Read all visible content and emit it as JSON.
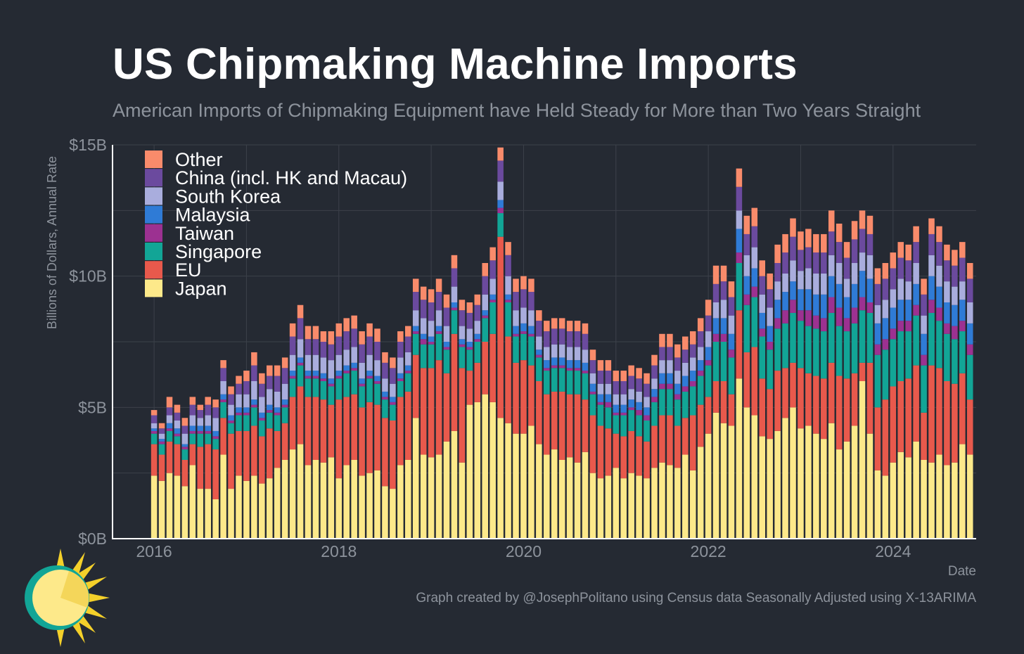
{
  "title": "US Chipmaking Machine Imports",
  "subtitle": "American Imports of Chipmaking Equipment have Held Steady for More than Two Years Straight",
  "caption": "Graph created by @JosephPolitano using Census data Seasonally Adjusted using X-13ARIMA",
  "colors": {
    "background": "#252a33",
    "grid": "#3c414a",
    "axis": "#ffffff",
    "Japan": "#fde98a",
    "EU": "#e8594c",
    "Singapore": "#12a596",
    "Taiwan": "#9c3191",
    "Malaysia": "#2f7bd6",
    "South Korea": "#a9addd",
    "China (incl. HK and Macau)": "#6b4a9e",
    "Other": "#f98b6b"
  },
  "chart_data": {
    "type": "bar",
    "stacked": true,
    "xlabel": "Date",
    "ylabel": "Billions of Dollars, Annual Rate",
    "ylim": [
      0,
      15
    ],
    "xlim": [
      2015.55,
      24.9
    ],
    "y_ticks": [
      0,
      5,
      10,
      15
    ],
    "y_tick_labels": [
      "$0B",
      "$5B",
      "$10B",
      "$15B"
    ],
    "x_ticks": [
      "2016",
      "2018",
      "2020",
      "2022",
      "2024"
    ],
    "grid": true,
    "legend_position": "top-left",
    "legend": [
      "Other",
      "China (incl. HK and Macau)",
      "South Korea",
      "Malaysia",
      "Taiwan",
      "Singapore",
      "EU",
      "Japan"
    ],
    "start_month": "2016-01",
    "series_order": [
      "Japan",
      "EU",
      "Singapore",
      "Taiwan",
      "Malaysia",
      "South Korea",
      "China (incl. HK and Macau)",
      "Other"
    ],
    "series": [
      {
        "name": "Japan",
        "values": [
          2.4,
          2.2,
          2.5,
          2.4,
          2.0,
          2.8,
          1.9,
          1.9,
          1.5,
          3.2,
          1.9,
          2.4,
          2.2,
          2.4,
          2.1,
          2.3,
          2.7,
          3.0,
          3.4,
          3.6,
          2.8,
          3.0,
          2.9,
          3.1,
          2.3,
          2.8,
          3.0,
          2.4,
          2.5,
          2.6,
          2.0,
          1.9,
          2.8,
          3.0,
          4.6,
          3.2,
          3.1,
          3.2,
          3.7,
          4.1,
          2.9,
          5.1,
          5.2,
          5.5,
          5.2,
          4.6,
          4.4,
          4.0,
          4.0,
          4.3,
          3.6,
          3.2,
          3.4,
          3.0,
          3.1,
          2.9,
          3.3,
          2.5,
          2.3,
          2.4,
          2.7,
          2.3,
          2.5,
          2.4,
          2.3,
          2.7,
          2.9,
          2.8,
          2.7,
          3.2,
          2.6,
          3.5,
          4.0,
          4.8,
          4.4,
          4.3,
          6.1,
          5.0,
          4.7,
          3.9,
          3.8,
          4.1,
          4.6,
          5.0,
          4.2,
          4.3,
          4.0,
          3.8,
          4.4,
          3.4,
          3.7,
          4.3,
          6.0,
          4.0,
          2.6,
          2.4,
          2.9,
          3.3,
          3.1,
          3.7,
          3.0,
          2.9,
          3.2,
          2.8,
          2.9,
          3.6,
          3.2
        ]
      },
      {
        "name": "EU",
        "values": [
          1.2,
          1.0,
          1.2,
          1.2,
          1.0,
          0.8,
          1.6,
          1.7,
          1.9,
          1.4,
          2.1,
          1.7,
          1.9,
          1.9,
          1.8,
          1.9,
          1.4,
          1.4,
          2.0,
          2.2,
          2.6,
          2.4,
          2.4,
          2.0,
          3.0,
          2.6,
          2.5,
          2.6,
          2.7,
          2.5,
          2.6,
          2.6,
          2.6,
          2.6,
          2.4,
          3.3,
          3.4,
          3.6,
          2.6,
          3.7,
          3.6,
          1.3,
          1.5,
          2.0,
          2.6,
          6.9,
          3.3,
          2.7,
          2.8,
          2.3,
          2.4,
          2.3,
          2.2,
          2.6,
          2.4,
          2.6,
          2.0,
          2.2,
          2.0,
          1.8,
          1.3,
          1.6,
          1.6,
          1.5,
          1.4,
          1.6,
          1.8,
          1.9,
          1.6,
          1.4,
          2.1,
          1.6,
          1.4,
          1.2,
          1.6,
          1.2,
          2.6,
          2.1,
          2.6,
          2.2,
          1.9,
          2.3,
          1.9,
          1.7,
          2.3,
          2.0,
          2.2,
          2.3,
          2.3,
          2.8,
          2.4,
          2.0,
          0.7,
          2.7,
          2.4,
          2.9,
          2.9,
          2.7,
          3.0,
          2.9,
          1.8,
          3.7,
          3.3,
          3.2,
          3.0,
          2.7,
          2.1
        ]
      },
      {
        "name": "Singapore",
        "values": [
          0.4,
          0.4,
          0.4,
          0.3,
          0.4,
          0.4,
          0.5,
          0.4,
          0.4,
          0.6,
          0.4,
          0.6,
          0.6,
          0.7,
          0.6,
          0.6,
          0.6,
          0.6,
          0.7,
          0.8,
          0.7,
          0.7,
          0.7,
          0.7,
          0.8,
          0.9,
          0.9,
          0.8,
          0.9,
          0.8,
          0.7,
          0.6,
          0.6,
          0.7,
          0.8,
          0.9,
          0.9,
          1.0,
          0.9,
          0.9,
          0.8,
          0.8,
          0.8,
          0.9,
          1.2,
          0.9,
          1.3,
          1.0,
          1.0,
          1.1,
          0.9,
          0.9,
          0.9,
          0.9,
          0.9,
          0.9,
          1.0,
          0.8,
          0.8,
          0.8,
          0.7,
          0.8,
          0.8,
          0.8,
          0.8,
          0.9,
          1.0,
          1.0,
          1.0,
          1.0,
          1.1,
          1.1,
          1.2,
          1.5,
          1.5,
          1.4,
          1.8,
          1.8,
          1.9,
          1.6,
          1.5,
          1.6,
          1.7,
          1.9,
          1.8,
          1.8,
          1.8,
          1.8,
          1.9,
          1.9,
          1.8,
          1.9,
          2.0,
          1.9,
          2.0,
          1.9,
          1.8,
          1.9,
          1.8,
          1.9,
          1.8,
          2.0,
          1.8,
          1.8,
          1.7,
          1.6,
          1.7
        ]
      },
      {
        "name": "Taiwan",
        "values": [
          0.1,
          0.1,
          0.1,
          0.1,
          0.1,
          0.1,
          0.1,
          0.1,
          0.1,
          0.1,
          0.1,
          0.1,
          0.1,
          0.1,
          0.1,
          0.1,
          0.1,
          0.1,
          0.1,
          0.1,
          0.1,
          0.1,
          0.1,
          0.1,
          0.1,
          0.1,
          0.1,
          0.1,
          0.1,
          0.1,
          0.1,
          0.1,
          0.1,
          0.1,
          0.1,
          0.2,
          0.1,
          0.1,
          0.1,
          0.1,
          0.1,
          0.1,
          0.1,
          0.1,
          0.1,
          0.2,
          0.1,
          0.1,
          0.1,
          0.1,
          0.1,
          0.1,
          0.1,
          0.1,
          0.1,
          0.1,
          0.1,
          0.1,
          0.1,
          0.2,
          0.1,
          0.1,
          0.1,
          0.2,
          0.2,
          0.2,
          0.2,
          0.2,
          0.2,
          0.2,
          0.2,
          0.2,
          0.2,
          0.3,
          0.3,
          0.3,
          0.4,
          0.4,
          0.4,
          0.3,
          0.3,
          0.4,
          0.5,
          0.5,
          0.4,
          0.6,
          0.5,
          0.5,
          0.6,
          0.7,
          0.5,
          0.6,
          0.5,
          0.4,
          0.4,
          0.4,
          0.4,
          0.4,
          0.4,
          0.4,
          0.4,
          0.5,
          0.5,
          0.4,
          0.5,
          0.4,
          0.4
        ]
      },
      {
        "name": "Malaysia",
        "values": [
          0.1,
          0.1,
          0.2,
          0.2,
          0.1,
          0.2,
          0.2,
          0.2,
          0.2,
          0.2,
          0.2,
          0.2,
          0.2,
          0.2,
          0.2,
          0.2,
          0.2,
          0.2,
          0.2,
          0.2,
          0.2,
          0.2,
          0.2,
          0.2,
          0.2,
          0.2,
          0.2,
          0.2,
          0.2,
          0.2,
          0.2,
          0.2,
          0.2,
          0.2,
          0.2,
          0.2,
          0.2,
          0.2,
          0.2,
          0.2,
          0.2,
          0.2,
          0.2,
          0.2,
          0.2,
          0.3,
          0.2,
          0.3,
          0.3,
          0.3,
          0.2,
          0.3,
          0.3,
          0.3,
          0.3,
          0.3,
          0.3,
          0.3,
          0.3,
          0.3,
          0.3,
          0.3,
          0.3,
          0.3,
          0.3,
          0.3,
          0.4,
          0.4,
          0.4,
          0.4,
          0.4,
          0.4,
          0.5,
          0.6,
          0.6,
          0.6,
          0.9,
          0.7,
          0.7,
          0.6,
          0.6,
          0.7,
          0.7,
          0.7,
          0.8,
          0.8,
          0.8,
          0.9,
          0.8,
          0.9,
          0.8,
          0.9,
          1.0,
          0.9,
          0.8,
          0.8,
          0.8,
          0.8,
          0.8,
          0.8,
          0.8,
          0.9,
          0.8,
          0.8,
          0.8,
          0.8,
          0.8
        ]
      },
      {
        "name": "South Korea",
        "values": [
          0.2,
          0.2,
          0.3,
          0.3,
          0.4,
          0.4,
          0.3,
          0.4,
          0.5,
          0.5,
          0.4,
          0.5,
          0.5,
          0.7,
          0.6,
          0.6,
          0.6,
          0.6,
          0.6,
          0.7,
          0.6,
          0.6,
          0.6,
          0.7,
          0.6,
          0.6,
          0.6,
          0.6,
          0.6,
          0.6,
          0.5,
          0.5,
          0.6,
          0.5,
          0.6,
          0.6,
          0.6,
          0.6,
          0.6,
          0.6,
          0.5,
          0.5,
          0.5,
          0.6,
          0.6,
          0.7,
          0.7,
          0.6,
          0.6,
          0.6,
          0.5,
          0.5,
          0.5,
          0.5,
          0.5,
          0.5,
          0.5,
          0.4,
          0.4,
          0.4,
          0.4,
          0.4,
          0.4,
          0.4,
          0.4,
          0.4,
          0.5,
          0.5,
          0.5,
          0.5,
          0.5,
          0.5,
          0.6,
          0.6,
          0.7,
          0.7,
          0.7,
          0.8,
          0.8,
          0.7,
          0.7,
          0.7,
          0.7,
          0.8,
          0.7,
          0.8,
          0.8,
          0.8,
          0.8,
          0.8,
          0.7,
          0.8,
          0.7,
          0.9,
          0.7,
          0.7,
          0.7,
          0.8,
          0.7,
          0.8,
          0.7,
          0.8,
          0.8,
          0.8,
          0.7,
          0.7,
          0.8
        ]
      },
      {
        "name": "China (incl. HK and Macau)",
        "values": [
          0.3,
          0.2,
          0.3,
          0.3,
          0.3,
          0.4,
          0.3,
          0.4,
          0.4,
          0.5,
          0.4,
          0.4,
          0.5,
          0.6,
          0.5,
          0.5,
          0.6,
          0.6,
          0.7,
          0.8,
          0.6,
          0.6,
          0.6,
          0.6,
          0.7,
          0.7,
          0.7,
          0.7,
          0.7,
          0.7,
          0.6,
          0.6,
          0.6,
          0.6,
          0.7,
          0.7,
          0.7,
          0.7,
          0.7,
          0.7,
          0.6,
          0.6,
          0.6,
          0.7,
          0.7,
          0.8,
          0.8,
          0.7,
          0.7,
          0.7,
          0.6,
          0.6,
          0.6,
          0.6,
          0.6,
          0.6,
          0.6,
          0.5,
          0.5,
          0.5,
          0.5,
          0.5,
          0.5,
          0.5,
          0.5,
          0.5,
          0.5,
          0.5,
          0.5,
          0.5,
          0.5,
          0.6,
          0.6,
          0.7,
          0.7,
          0.7,
          0.9,
          0.8,
          0.8,
          0.7,
          0.7,
          0.7,
          0.8,
          0.9,
          0.8,
          0.8,
          0.8,
          0.8,
          0.9,
          0.8,
          0.8,
          0.9,
          0.9,
          0.8,
          0.8,
          0.8,
          0.8,
          0.8,
          0.8,
          0.8,
          0.8,
          0.8,
          0.9,
          0.8,
          0.8,
          0.9,
          0.9
        ]
      },
      {
        "name": "Other",
        "values": [
          0.2,
          0.2,
          0.4,
          0.3,
          0.3,
          0.3,
          0.2,
          0.3,
          0.3,
          0.3,
          0.3,
          0.3,
          0.4,
          0.5,
          0.4,
          0.4,
          0.4,
          0.4,
          0.5,
          0.5,
          0.5,
          0.5,
          0.4,
          0.5,
          0.5,
          0.5,
          0.5,
          0.5,
          0.5,
          0.5,
          0.4,
          0.4,
          0.4,
          0.4,
          0.5,
          0.5,
          0.5,
          0.5,
          0.5,
          0.5,
          0.4,
          0.4,
          0.4,
          0.5,
          0.5,
          0.5,
          0.5,
          0.5,
          0.5,
          0.5,
          0.4,
          0.4,
          0.4,
          0.4,
          0.4,
          0.4,
          0.4,
          0.4,
          0.4,
          0.4,
          0.4,
          0.4,
          0.4,
          0.4,
          0.4,
          0.4,
          0.5,
          0.5,
          0.5,
          0.5,
          0.5,
          0.5,
          0.6,
          0.7,
          0.6,
          0.6,
          0.7,
          0.7,
          0.7,
          0.6,
          0.6,
          0.7,
          0.7,
          0.7,
          0.7,
          0.7,
          0.7,
          0.7,
          0.8,
          0.7,
          0.6,
          0.7,
          0.7,
          0.7,
          0.6,
          0.6,
          0.6,
          0.6,
          0.6,
          0.6,
          0.6,
          0.6,
          0.6,
          0.6,
          0.6,
          0.6,
          0.6
        ]
      }
    ]
  }
}
